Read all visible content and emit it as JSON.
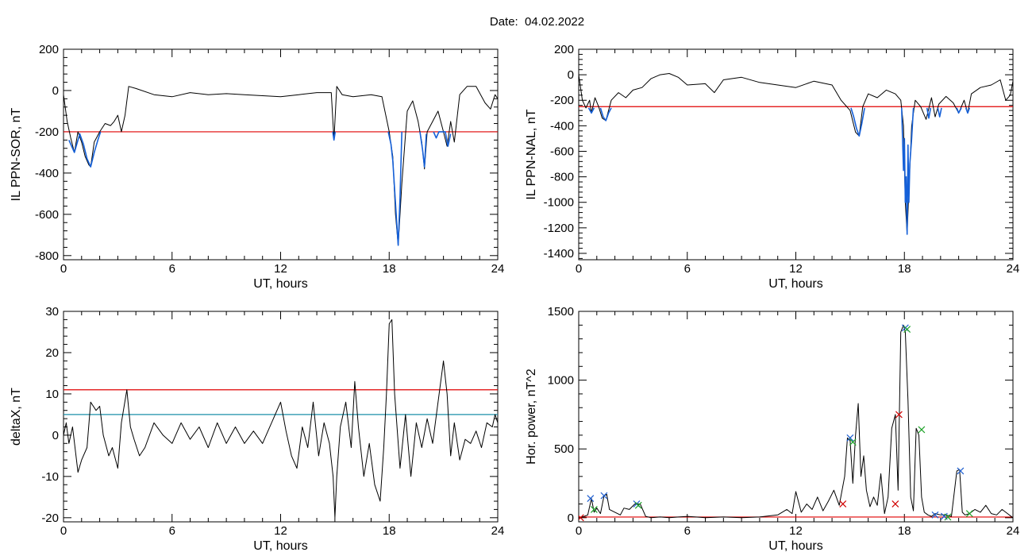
{
  "title": "Date:  04.02.2022",
  "colors": {
    "trace": "#000000",
    "threshold_red": "#e00000",
    "threshold_teal": "#1b8fa8",
    "highlight_blue": "#1560d8",
    "marker_blue": "#1f5fd0",
    "marker_red": "#d00000",
    "marker_green": "#1fa32a"
  },
  "chart_data": [
    {
      "id": "sor",
      "type": "line",
      "xlabel": "UT, hours",
      "ylabel": "IL PPN-SOR, nT",
      "xlim": [
        0,
        24
      ],
      "ylim": [
        -820,
        200
      ],
      "xticks": [
        "0",
        "6",
        "12",
        "18",
        "24"
      ],
      "yticks": [
        "200",
        "0",
        "-200",
        "-400",
        "-600",
        "-800"
      ],
      "threshold": -200,
      "series": [
        {
          "color": "#000000",
          "x": [
            0,
            0.2,
            0.4,
            0.6,
            0.8,
            1.0,
            1.2,
            1.4,
            1.5,
            1.7,
            2.0,
            2.3,
            2.6,
            2.8,
            3.0,
            3.2,
            3.4,
            3.6,
            4,
            5,
            6,
            7,
            8,
            9,
            10,
            11,
            12,
            13,
            14,
            14.8,
            14.95,
            15.1,
            15.4,
            16,
            17,
            17.6,
            18.0,
            18.2,
            18.35,
            18.5,
            18.7,
            19.0,
            19.3,
            19.6,
            19.8,
            19.95,
            20.1,
            20.4,
            20.7,
            21.0,
            21.2,
            21.4,
            21.6,
            21.9,
            22.3,
            22.8,
            23.3,
            23.6,
            23.85,
            24
          ],
          "y": [
            -20,
            -150,
            -230,
            -300,
            -200,
            -250,
            -320,
            -360,
            -370,
            -250,
            -200,
            -160,
            -170,
            -150,
            -120,
            -200,
            -120,
            20,
            10,
            -20,
            -30,
            -10,
            -20,
            -15,
            -20,
            -25,
            -30,
            -20,
            -10,
            -10,
            -240,
            20,
            -20,
            -30,
            -20,
            -30,
            -200,
            -320,
            -600,
            -750,
            -450,
            -100,
            -50,
            -150,
            -250,
            -380,
            -200,
            -150,
            -100,
            -200,
            -270,
            -150,
            -250,
            -20,
            20,
            20,
            -60,
            -90,
            -20,
            -40
          ]
        },
        {
          "color": "#1560d8",
          "x": [
            0.3,
            0.6,
            0.9,
            1.1,
            1.3,
            1.5,
            1.7,
            1.9,
            2.05
          ],
          "y": [
            -240,
            -300,
            -210,
            -260,
            -330,
            -370,
            -300,
            -240,
            -200
          ]
        },
        {
          "color": "#1560d8",
          "x": [
            14.88,
            14.95,
            15.02
          ],
          "y": [
            -200,
            -240,
            -200
          ]
        },
        {
          "color": "#1560d8",
          "x": [
            17.95,
            18.1,
            18.2,
            18.3,
            18.4,
            18.5,
            18.6,
            18.7
          ],
          "y": [
            -200,
            -260,
            -340,
            -480,
            -620,
            -750,
            -520,
            -200
          ]
        },
        {
          "color": "#1560d8",
          "x": [
            19.7,
            19.85,
            19.95,
            20.05
          ],
          "y": [
            -200,
            -290,
            -370,
            -210
          ]
        },
        {
          "color": "#1560d8",
          "x": [
            20.45,
            20.6,
            20.75,
            21.1,
            21.25,
            21.4
          ],
          "y": [
            -200,
            -230,
            -200,
            -200,
            -270,
            -210
          ]
        }
      ]
    },
    {
      "id": "nal",
      "type": "line",
      "xlabel": "UT, hours",
      "ylabel": "IL PPN-NAL, nT",
      "xlim": [
        0,
        24
      ],
      "ylim": [
        -1450,
        200
      ],
      "xticks": [
        "0",
        "6",
        "12",
        "18",
        "24"
      ],
      "yticks": [
        "200",
        "0",
        "-200",
        "-400",
        "-600",
        "-800",
        "-1000",
        "-1200",
        "-1400"
      ],
      "threshold": -250,
      "series": [
        {
          "color": "#000000",
          "x": [
            0,
            0.2,
            0.4,
            0.6,
            0.7,
            0.9,
            1.1,
            1.3,
            1.5,
            1.8,
            2.2,
            2.6,
            3.0,
            3.5,
            4.0,
            4.5,
            5.0,
            5.5,
            6.0,
            7,
            7.5,
            8,
            9,
            10,
            11,
            12,
            13,
            14,
            14.5,
            15.0,
            15.3,
            15.5,
            15.7,
            16,
            16.5,
            17,
            17.5,
            17.8,
            17.95,
            18.05,
            18.15,
            18.25,
            18.4,
            18.6,
            18.9,
            19.2,
            19.5,
            19.7,
            19.9,
            20.3,
            20.7,
            21.0,
            21.3,
            21.5,
            21.7,
            22.2,
            22.8,
            23.3,
            23.6,
            23.85,
            24
          ],
          "y": [
            0,
            -200,
            -260,
            -200,
            -300,
            -180,
            -250,
            -340,
            -360,
            -200,
            -140,
            -180,
            -120,
            -100,
            -30,
            0,
            10,
            -20,
            -80,
            -70,
            -140,
            -40,
            -20,
            -60,
            -80,
            -100,
            -50,
            -80,
            -200,
            -280,
            -450,
            -480,
            -250,
            -150,
            -180,
            -120,
            -150,
            -200,
            -400,
            -1000,
            -1250,
            -900,
            -400,
            -200,
            -250,
            -350,
            -180,
            -330,
            -230,
            -170,
            -220,
            -300,
            -200,
            -300,
            -150,
            -100,
            -80,
            -40,
            -200,
            -160,
            -50
          ]
        },
        {
          "color": "#1560d8",
          "x": [
            0.55,
            0.7,
            0.85
          ],
          "y": [
            -260,
            -300,
            -260
          ]
        },
        {
          "color": "#1560d8",
          "x": [
            1.2,
            1.35,
            1.5,
            1.65,
            1.8
          ],
          "y": [
            -260,
            -330,
            -360,
            -300,
            -260
          ]
        },
        {
          "color": "#1560d8",
          "x": [
            15.05,
            15.2,
            15.35,
            15.5,
            15.65,
            15.8
          ],
          "y": [
            -260,
            -330,
            -420,
            -480,
            -380,
            -260
          ]
        },
        {
          "color": "#1560d8",
          "x": [
            17.85,
            17.95,
            18.0,
            18.05,
            18.1,
            18.15,
            18.2,
            18.25,
            18.3,
            18.4,
            18.5
          ],
          "y": [
            -260,
            -750,
            -500,
            -1000,
            -800,
            -1250,
            -550,
            -1000,
            -700,
            -500,
            -260
          ]
        },
        {
          "color": "#1560d8",
          "x": [
            19.25,
            19.35,
            19.45
          ],
          "y": [
            -260,
            -340,
            -260
          ]
        },
        {
          "color": "#1560d8",
          "x": [
            19.85,
            19.95,
            20.05
          ],
          "y": [
            -260,
            -330,
            -260
          ]
        },
        {
          "color": "#1560d8",
          "x": [
            20.9,
            21.0,
            21.15
          ],
          "y": [
            -260,
            -300,
            -260
          ]
        },
        {
          "color": "#1560d8",
          "x": [
            21.4,
            21.5,
            21.6
          ],
          "y": [
            -260,
            -300,
            -260
          ]
        }
      ]
    },
    {
      "id": "deltax",
      "type": "line",
      "xlabel": "UT, hours",
      "ylabel": "deltaX, nT",
      "xlim": [
        0,
        24
      ],
      "ylim": [
        -21,
        30
      ],
      "xticks": [
        "0",
        "6",
        "12",
        "18",
        "24"
      ],
      "yticks": [
        "30",
        "20",
        "10",
        "0",
        "-10",
        "-20"
      ],
      "thresholds": [
        {
          "value": 11,
          "color": "#e00000"
        },
        {
          "value": 5,
          "color": "#1b8fa8"
        }
      ],
      "series": [
        {
          "color": "#000000",
          "x": [
            0,
            0.15,
            0.3,
            0.5,
            0.8,
            1.0,
            1.3,
            1.5,
            1.8,
            2.0,
            2.2,
            2.5,
            2.7,
            3.0,
            3.2,
            3.5,
            3.7,
            3.9,
            4.2,
            4.5,
            5.0,
            5.5,
            6.0,
            6.5,
            7.0,
            7.5,
            8,
            8.5,
            9,
            9.5,
            10,
            10.5,
            11,
            11.5,
            12,
            12.3,
            12.6,
            12.9,
            13.2,
            13.5,
            13.8,
            14.1,
            14.4,
            14.7,
            14.9,
            15.0,
            15.1,
            15.3,
            15.6,
            15.9,
            16.1,
            16.3,
            16.6,
            16.9,
            17.2,
            17.5,
            17.7,
            17.85,
            18.0,
            18.15,
            18.3,
            18.6,
            18.9,
            19.2,
            19.5,
            19.8,
            20.1,
            20.4,
            20.7,
            21.0,
            21.2,
            21.4,
            21.6,
            21.9,
            22.2,
            22.5,
            22.8,
            23.1,
            23.4,
            23.7,
            23.85,
            24
          ],
          "y": [
            0,
            3,
            -2,
            2,
            -9,
            -6,
            -3,
            8,
            6,
            7,
            0,
            -5,
            -3,
            -8,
            3,
            11,
            2,
            -1,
            -5,
            -3,
            3,
            0,
            -2,
            3,
            -1,
            2,
            -3,
            3,
            -2,
            2,
            -2,
            1,
            -2,
            3,
            8,
            1,
            -5,
            -8,
            2,
            -3,
            8,
            -5,
            3,
            -2,
            -10,
            -20,
            -10,
            2,
            8,
            -3,
            13,
            2,
            -10,
            -2,
            -12,
            -16,
            -3,
            10,
            27,
            28,
            10,
            -8,
            5,
            -10,
            3,
            -3,
            4,
            -2,
            8,
            18,
            10,
            -5,
            3,
            -6,
            -1,
            -2,
            1,
            -3,
            3,
            2,
            5,
            3
          ]
        }
      ]
    },
    {
      "id": "power",
      "type": "line",
      "xlabel": "UT, hours",
      "ylabel": "Hor. power, nT^2",
      "xlim": [
        0,
        24
      ],
      "ylim": [
        -30,
        1500
      ],
      "xticks": [
        "0",
        "6",
        "12",
        "18",
        "24"
      ],
      "yticks": [
        "1500",
        "1000",
        "500",
        "0"
      ],
      "threshold": 5,
      "series": [
        {
          "color": "#000000",
          "x": [
            0,
            0.3,
            0.5,
            0.7,
            0.85,
            1.0,
            1.2,
            1.4,
            1.55,
            1.7,
            2.0,
            2.3,
            2.5,
            2.8,
            3.1,
            3.4,
            3.7,
            4.0,
            4.5,
            5,
            6,
            7,
            8,
            9,
            10,
            11,
            11.5,
            11.8,
            12.0,
            12.3,
            12.6,
            12.9,
            13.2,
            13.5,
            13.8,
            14.1,
            14.4,
            14.7,
            14.85,
            15.0,
            15.15,
            15.3,
            15.45,
            15.6,
            15.75,
            15.9,
            16.1,
            16.3,
            16.5,
            16.7,
            16.9,
            17.1,
            17.3,
            17.5,
            17.65,
            17.8,
            17.95,
            18.05,
            18.2,
            18.35,
            18.5,
            18.65,
            18.8,
            18.95,
            19.1,
            19.3,
            19.5,
            19.7,
            20.0,
            20.3,
            20.6,
            20.9,
            21.05,
            21.2,
            21.35,
            21.6,
            21.9,
            22.2,
            22.5,
            22.8,
            23.1,
            23.4,
            23.7,
            24
          ],
          "y": [
            0,
            10,
            20,
            140,
            40,
            70,
            30,
            160,
            170,
            60,
            40,
            20,
            70,
            60,
            100,
            100,
            10,
            0,
            5,
            0,
            10,
            0,
            5,
            0,
            5,
            20,
            60,
            30,
            190,
            40,
            100,
            60,
            150,
            50,
            120,
            200,
            90,
            300,
            580,
            560,
            250,
            600,
            830,
            300,
            450,
            200,
            80,
            150,
            90,
            320,
            30,
            150,
            650,
            750,
            200,
            1350,
            1400,
            1350,
            850,
            150,
            50,
            650,
            600,
            150,
            40,
            20,
            10,
            30,
            20,
            20,
            10,
            340,
            350,
            40,
            20,
            30,
            60,
            40,
            90,
            30,
            20,
            60,
            30,
            0
          ]
        }
      ],
      "markers": [
        {
          "x": 0.1,
          "y": 0,
          "color": "#d00000"
        },
        {
          "x": 0.65,
          "y": 140,
          "color": "#1f5fd0"
        },
        {
          "x": 0.85,
          "y": 60,
          "color": "#1fa32a"
        },
        {
          "x": 1.4,
          "y": 160,
          "color": "#1f5fd0"
        },
        {
          "x": 3.2,
          "y": 100,
          "color": "#1f5fd0"
        },
        {
          "x": 3.3,
          "y": 90,
          "color": "#1fa32a"
        },
        {
          "x": 14.6,
          "y": 100,
          "color": "#d00000"
        },
        {
          "x": 15.0,
          "y": 580,
          "color": "#1f5fd0"
        },
        {
          "x": 15.15,
          "y": 550,
          "color": "#1fa32a"
        },
        {
          "x": 17.5,
          "y": 100,
          "color": "#d00000"
        },
        {
          "x": 17.7,
          "y": 750,
          "color": "#d00000"
        },
        {
          "x": 18.05,
          "y": 1380,
          "color": "#1f5fd0"
        },
        {
          "x": 18.15,
          "y": 1370,
          "color": "#1fa32a"
        },
        {
          "x": 18.95,
          "y": 640,
          "color": "#1fa32a"
        },
        {
          "x": 19.7,
          "y": 20,
          "color": "#1f5fd0"
        },
        {
          "x": 20.2,
          "y": 10,
          "color": "#1f5fd0"
        },
        {
          "x": 20.4,
          "y": 5,
          "color": "#1fa32a"
        },
        {
          "x": 21.1,
          "y": 340,
          "color": "#1f5fd0"
        },
        {
          "x": 21.6,
          "y": 30,
          "color": "#1fa32a"
        }
      ]
    }
  ]
}
